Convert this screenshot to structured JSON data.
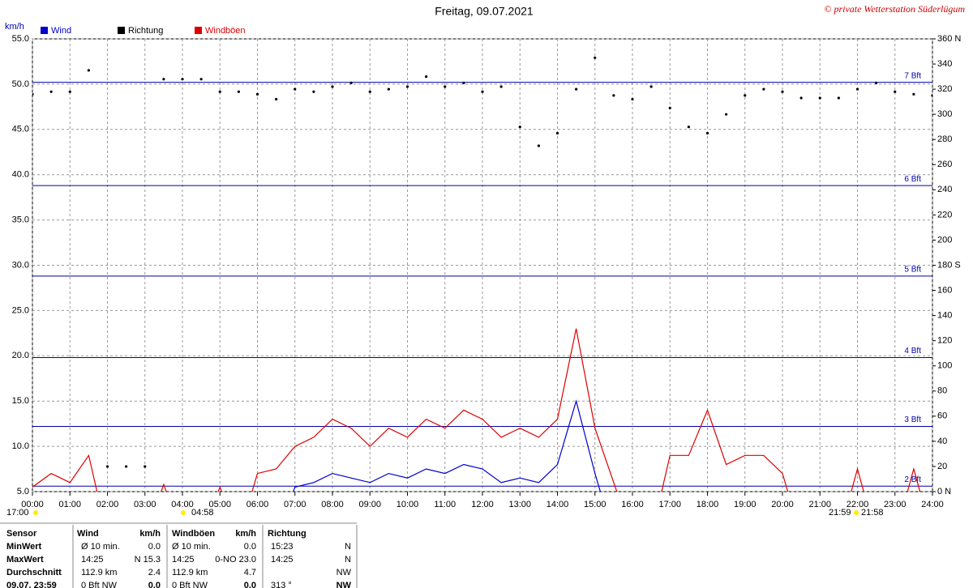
{
  "chart_data": {
    "type": "line",
    "title": "Freitag, 09.07.2021",
    "copyright": "© private Wetterstation Süderlügum",
    "y_axis_label": "km/h",
    "xlim": [
      0,
      24
    ],
    "xticks": [
      {
        "value": 0,
        "label": "00:00"
      },
      {
        "value": 1,
        "label": "01:00"
      },
      {
        "value": 2,
        "label": "02:00"
      },
      {
        "value": 3,
        "label": "03:00"
      },
      {
        "value": 4,
        "label": "04:00"
      },
      {
        "value": 5,
        "label": "05:00"
      },
      {
        "value": 6,
        "label": "06:00"
      },
      {
        "value": 7,
        "label": "07:00"
      },
      {
        "value": 8,
        "label": "08:00"
      },
      {
        "value": 9,
        "label": "09:00"
      },
      {
        "value": 10,
        "label": "10:00"
      },
      {
        "value": 11,
        "label": "11:00"
      },
      {
        "value": 12,
        "label": "12:00"
      },
      {
        "value": 13,
        "label": "13:00"
      },
      {
        "value": 14,
        "label": "14:00"
      },
      {
        "value": 15,
        "label": "15:00"
      },
      {
        "value": 16,
        "label": "16:00"
      },
      {
        "value": 17,
        "label": "17:00"
      },
      {
        "value": 18,
        "label": "18:00"
      },
      {
        "value": 19,
        "label": "19:00"
      },
      {
        "value": 20,
        "label": "20:00"
      },
      {
        "value": 21,
        "label": "21:00"
      },
      {
        "value": 22,
        "label": "22:00"
      },
      {
        "value": 23,
        "label": "23:00"
      },
      {
        "value": 24,
        "label": "24:00"
      }
    ],
    "ylim": [
      5,
      55
    ],
    "yticks": [
      {
        "value": 5,
        "label": "5.0"
      },
      {
        "value": 10,
        "label": "10.0"
      },
      {
        "value": 15,
        "label": "15.0"
      },
      {
        "value": 20,
        "label": "20.0"
      },
      {
        "value": 25,
        "label": "25.0"
      },
      {
        "value": 30,
        "label": "30.0"
      },
      {
        "value": 35,
        "label": "35.0"
      },
      {
        "value": 40,
        "label": "40.0"
      },
      {
        "value": 45,
        "label": "45.0"
      },
      {
        "value": 50,
        "label": "50.0"
      },
      {
        "value": 55,
        "label": "55.0"
      }
    ],
    "y2lim": [
      0,
      360
    ],
    "y2ticks": [
      {
        "value": 0,
        "label": "0 N"
      },
      20,
      40,
      60,
      80,
      100,
      120,
      140,
      160,
      {
        "value": 180,
        "label": "180 S"
      },
      200,
      220,
      240,
      260,
      280,
      300,
      320,
      340,
      {
        "value": 360,
        "label": "360 N"
      }
    ],
    "grid": true,
    "bft_lines": [
      {
        "value": 5.6,
        "label": "2 Bft"
      },
      {
        "value": 12.2,
        "label": "3 Bft"
      },
      {
        "value": 19.8,
        "label": "4 Bft"
      },
      {
        "value": 28.8,
        "label": "5 Bft"
      },
      {
        "value": 38.8,
        "label": "6 Bft"
      },
      {
        "value": 50.2,
        "label": "7 Bft"
      }
    ],
    "x": [
      0,
      0.5,
      1,
      1.5,
      2,
      2.5,
      3,
      3.5,
      4,
      4.5,
      5,
      5.5,
      6,
      6.5,
      7,
      7.5,
      8,
      8.5,
      9,
      9.5,
      10,
      10.5,
      11,
      11.5,
      12,
      12.5,
      13,
      13.5,
      14,
      14.5,
      15,
      15.5,
      16,
      16.5,
      17,
      17.5,
      18,
      18.5,
      19,
      19.5,
      20,
      20.5,
      21,
      21.5,
      22,
      22.5,
      23,
      23.5,
      24
    ],
    "series": [
      {
        "name": "Wind",
        "color": "#0000cc",
        "values": [
          0,
          0,
          0,
          0,
          0,
          0,
          0,
          0,
          0,
          0,
          0,
          0,
          0,
          0,
          5.5,
          6,
          7,
          6.5,
          6,
          7,
          6.5,
          7.5,
          7,
          8,
          7.5,
          6,
          6.5,
          6,
          8,
          15,
          7,
          0,
          0,
          0,
          0,
          0,
          0,
          0,
          0,
          0,
          0,
          0,
          0,
          0,
          0,
          0,
          0,
          0,
          0
        ]
      },
      {
        "name": "Richtung",
        "color": "#000000",
        "axis": "y2",
        "values": [
          316,
          318,
          318,
          335,
          20,
          20,
          20,
          328,
          328,
          328,
          318,
          318,
          316,
          312,
          320,
          318,
          322,
          325,
          318,
          320,
          322,
          330,
          322,
          325,
          318,
          322,
          290,
          275,
          285,
          320,
          345,
          315,
          312,
          322,
          305,
          290,
          285,
          300,
          315,
          320,
          318,
          313,
          313,
          313,
          320,
          325,
          318,
          316,
          315
        ]
      },
      {
        "name": "Windböen",
        "color": "#dd0000",
        "values": [
          5.5,
          7,
          6,
          9,
          0,
          0,
          0,
          5.8,
          0,
          0,
          5.5,
          0,
          7,
          7.5,
          10,
          11,
          13,
          12,
          10,
          12,
          11,
          13,
          12,
          14,
          13,
          11,
          12,
          11,
          13,
          23,
          12,
          6,
          0,
          0,
          9,
          9,
          14,
          8,
          9,
          9,
          7,
          0,
          0,
          0,
          7.5,
          0,
          0,
          7.5,
          0
        ]
      }
    ],
    "sun_labels": [
      "17:00",
      "04:58",
      "21:59",
      "21:58"
    ],
    "table": {
      "header": [
        "Sensor",
        "Wind",
        "km/h",
        "Windböen",
        "km/h",
        "Richtung"
      ],
      "rows": [
        {
          "label": "MinWert",
          "wind": [
            "Ø 10 min.",
            "0.0"
          ],
          "gust": [
            "Ø 10 min.",
            "0.0"
          ],
          "dir": [
            "15:23",
            "N"
          ]
        },
        {
          "label": "MaxWert",
          "wind": [
            "14:25",
            "N 15.3"
          ],
          "gust": [
            "14:25",
            "0-NO 23.0"
          ],
          "dir": [
            "14:25",
            "N"
          ]
        },
        {
          "label": "Durchschnitt",
          "wind": [
            "112.9 km",
            "2.4"
          ],
          "gust": [
            "112.9 km",
            "4.7"
          ],
          "dir": [
            "NW"
          ]
        },
        {
          "label": "09.07. 23:59",
          "wind": [
            "0 Bft NW",
            "0.0"
          ],
          "gust": [
            "0 Bft NW",
            "0.0"
          ],
          "dir": [
            "313 °",
            "NW"
          ]
        }
      ]
    }
  }
}
